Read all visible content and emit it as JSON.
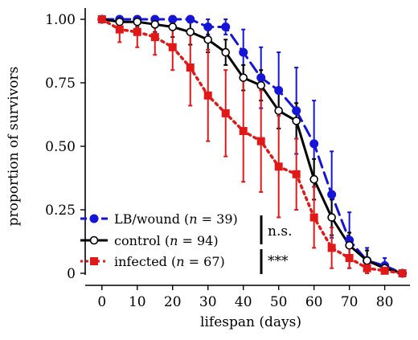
{
  "chart_data": {
    "type": "line",
    "xlabel": "lifespan (days)",
    "ylabel": "proportion of survivors",
    "xlim": [
      -2,
      86
    ],
    "ylim": [
      0,
      1.0
    ],
    "x_ticks": [
      0,
      10,
      20,
      30,
      40,
      50,
      60,
      70,
      80
    ],
    "x_tick_labels": [
      "0",
      "10",
      "20",
      "30",
      "40",
      "50",
      "60",
      "70",
      "80"
    ],
    "y_ticks": [
      0,
      0.25,
      0.5,
      0.75,
      1.0
    ],
    "y_tick_labels": [
      "0",
      "0.25",
      "0.50",
      "0.75",
      "1.00"
    ],
    "legend_position": "bottom-left",
    "series": [
      {
        "name": "LB/wound (n = 39)",
        "legend_prefix": "LB/wound (",
        "legend_n": "n",
        "legend_suffix": " = 39)",
        "color": "#1515d8",
        "line_style": "dashed",
        "marker": "filled-circle",
        "x": [
          0,
          5,
          10,
          15,
          20,
          25,
          30,
          35,
          40,
          45,
          50,
          55,
          60,
          65,
          70,
          75,
          80,
          85
        ],
        "y": [
          1.0,
          1.0,
          1.0,
          1.0,
          1.0,
          1.0,
          0.97,
          0.97,
          0.87,
          0.77,
          0.72,
          0.64,
          0.51,
          0.31,
          0.13,
          0.05,
          0.03,
          0.0
        ],
        "err": [
          0,
          0,
          0,
          0,
          0,
          0,
          0.03,
          0.03,
          0.09,
          0.12,
          0.15,
          0.17,
          0.17,
          0.17,
          0.11,
          0.05,
          0.03,
          0.0
        ]
      },
      {
        "name": "control (n = 94)",
        "legend_prefix": "control (",
        "legend_n": "n",
        "legend_suffix": " = 94)",
        "color": "#000000",
        "line_style": "solid",
        "marker": "open-circle",
        "x": [
          0,
          5,
          10,
          15,
          20,
          25,
          30,
          35,
          40,
          45,
          50,
          55,
          60,
          65,
          70,
          75,
          80,
          85
        ],
        "y": [
          1.0,
          0.99,
          0.99,
          0.98,
          0.97,
          0.95,
          0.92,
          0.87,
          0.77,
          0.74,
          0.64,
          0.6,
          0.37,
          0.22,
          0.11,
          0.05,
          0.02,
          0.0
        ],
        "err": [
          0,
          0.02,
          0.02,
          0.03,
          0.04,
          0.05,
          0.05,
          0.05,
          0.05,
          0.06,
          0.07,
          0.07,
          0.08,
          0.07,
          0.05,
          0.04,
          0.02,
          0.0
        ]
      },
      {
        "name": "infected (n = 67)",
        "legend_prefix": "infected (",
        "legend_n": "n",
        "legend_suffix": " = 67)",
        "color": "#e01818",
        "line_style": "dotted",
        "marker": "filled-square",
        "x": [
          0,
          5,
          10,
          15,
          20,
          25,
          30,
          35,
          40,
          45,
          50,
          55,
          60,
          65,
          70,
          75,
          80,
          85
        ],
        "y": [
          1.0,
          0.96,
          0.95,
          0.93,
          0.89,
          0.81,
          0.7,
          0.63,
          0.56,
          0.52,
          0.42,
          0.39,
          0.22,
          0.1,
          0.06,
          0.02,
          0.01,
          0.0
        ],
        "err": [
          0,
          0.05,
          0.06,
          0.07,
          0.09,
          0.15,
          0.18,
          0.17,
          0.2,
          0.2,
          0.2,
          0.14,
          0.12,
          0.08,
          0.04,
          0.02,
          0.01,
          0.0
        ]
      }
    ],
    "significance": [
      {
        "label": "n.s.",
        "between": [
          "LB/wound",
          "control"
        ]
      },
      {
        "label": "***",
        "between": [
          "control",
          "infected"
        ]
      }
    ]
  }
}
